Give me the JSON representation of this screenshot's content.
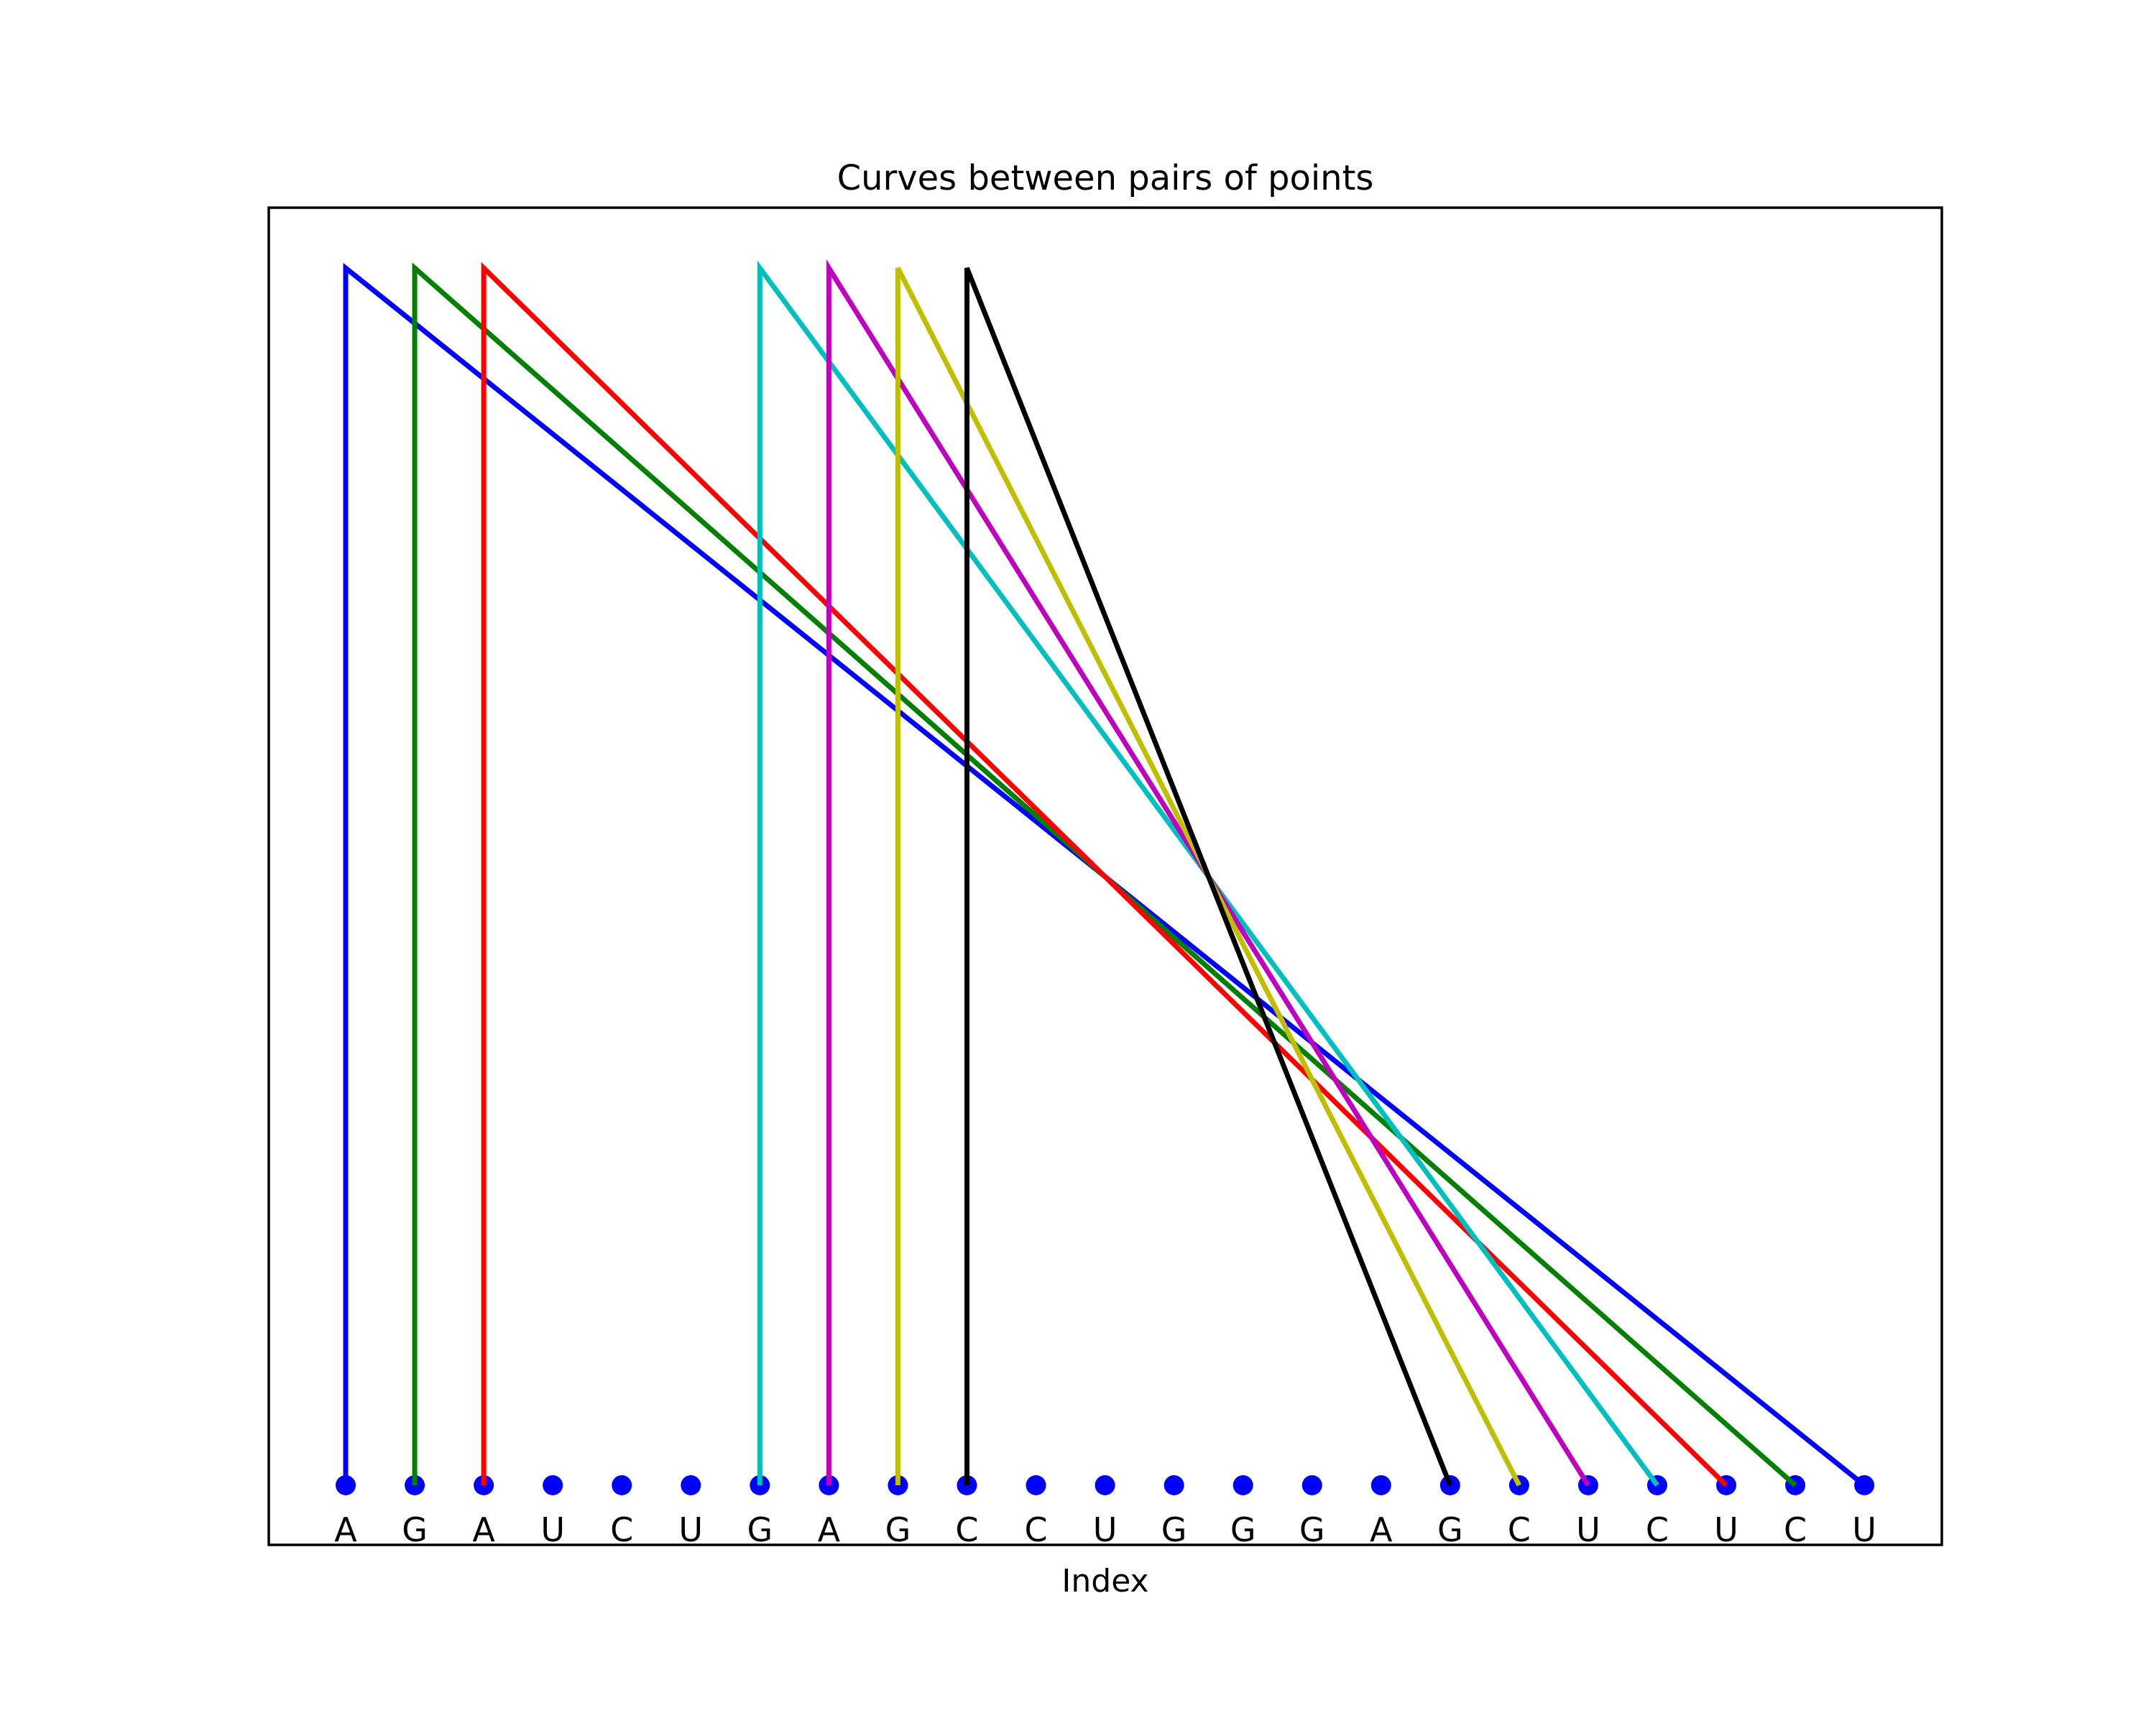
{
  "figure": {
    "background_color": "#ffffff",
    "frame_color": "#000000"
  },
  "chart_data": {
    "type": "line",
    "title": "Curves between pairs of points",
    "xlabel": "Index",
    "ylabel": "",
    "grid": false,
    "legend": false,
    "xlim": [
      -1.1,
      23.1
    ],
    "ylim": [
      -0.05,
      1.05
    ],
    "shape": "each pair drawn as vertical segment from start point up to peak height, then straight diagonal down to end point",
    "sequence": [
      "A",
      "G",
      "A",
      "U",
      "C",
      "U",
      "G",
      "A",
      "G",
      "C",
      "C",
      "U",
      "G",
      "G",
      "G",
      "A",
      "G",
      "C",
      "U",
      "C",
      "U",
      "C",
      "U"
    ],
    "point_y_value": 0,
    "peak_height_value": 1,
    "marker": {
      "shape": "circle",
      "color": "#0000ff"
    },
    "pairs": [
      {
        "start_index": 0,
        "end_index": 22,
        "start_base": "A",
        "end_base": "U",
        "color": "#0000ff",
        "color_name": "blue"
      },
      {
        "start_index": 1,
        "end_index": 21,
        "start_base": "G",
        "end_base": "C",
        "color": "#008000",
        "color_name": "green"
      },
      {
        "start_index": 2,
        "end_index": 20,
        "start_base": "A",
        "end_base": "U",
        "color": "#ff0000",
        "color_name": "red"
      },
      {
        "start_index": 6,
        "end_index": 19,
        "start_base": "G",
        "end_base": "C",
        "color": "#00bfbf",
        "color_name": "cyan"
      },
      {
        "start_index": 7,
        "end_index": 18,
        "start_base": "A",
        "end_base": "U",
        "color": "#bf00bf",
        "color_name": "magenta"
      },
      {
        "start_index": 8,
        "end_index": 17,
        "start_base": "G",
        "end_base": "C",
        "color": "#bfbf00",
        "color_name": "yellow"
      },
      {
        "start_index": 9,
        "end_index": 16,
        "start_base": "C",
        "end_base": "G",
        "color": "#000000",
        "color_name": "black"
      }
    ]
  }
}
